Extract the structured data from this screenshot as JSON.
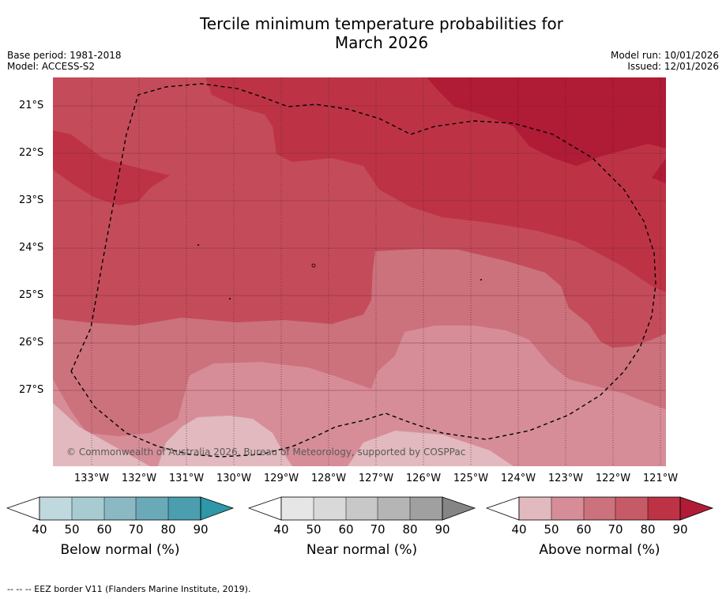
{
  "title_line1": "Tercile minimum temperature probabilities for",
  "title_line2": "March 2026",
  "base_period": "Base period: 1981-2018",
  "model": "Model: ACCESS-S2",
  "model_run": "Model run: 10/01/2026",
  "issued": "Issued: 12/01/2026",
  "copyright": "© Commonwealth of Australia 2026, Bureau of Meteorology, supported by COSPPac",
  "latitudes": [
    "21°S",
    "22°S",
    "23°S",
    "24°S",
    "25°S",
    "26°S",
    "27°S"
  ],
  "longitudes": [
    "133°W",
    "132°W",
    "131°W",
    "130°W",
    "129°W",
    "128°W",
    "127°W",
    "126°W",
    "125°W",
    "124°W",
    "123°W",
    "122°W",
    "121°W"
  ],
  "colorbars": [
    {
      "label": "Below normal (%)",
      "ticks": [
        "40",
        "50",
        "60",
        "70",
        "80",
        "90"
      ],
      "colors": [
        "#ffffff",
        "#c0d9de",
        "#a8cbd2",
        "#8ab9c4",
        "#6aa9b8",
        "#4a9eae",
        "#2e97a8"
      ]
    },
    {
      "label": "Near normal (%)",
      "ticks": [
        "40",
        "50",
        "60",
        "70",
        "80",
        "90"
      ],
      "colors": [
        "#ffffff",
        "#e6e6e6",
        "#d9d9d9",
        "#c8c8c8",
        "#b5b5b5",
        "#a0a0a0",
        "#858585"
      ]
    },
    {
      "label": "Above normal (%)",
      "ticks": [
        "40",
        "50",
        "60",
        "70",
        "80",
        "90"
      ],
      "colors": [
        "#ffffff",
        "#e1b9be",
        "#d68d97",
        "#cc727d",
        "#c75a67",
        "#bd3345",
        "#b01b36"
      ]
    }
  ],
  "footer": "--  --  -- EEZ border V11 (Flanders Marine Institute, 2019).",
  "colors": {
    "above_40_50": "#e1b9be",
    "above_50_60": "#d68d97",
    "above_60_70": "#cc727d",
    "above_70_80": "#c75a67",
    "above_80_90": "#bd3345",
    "above_90": "#b01b36"
  }
}
